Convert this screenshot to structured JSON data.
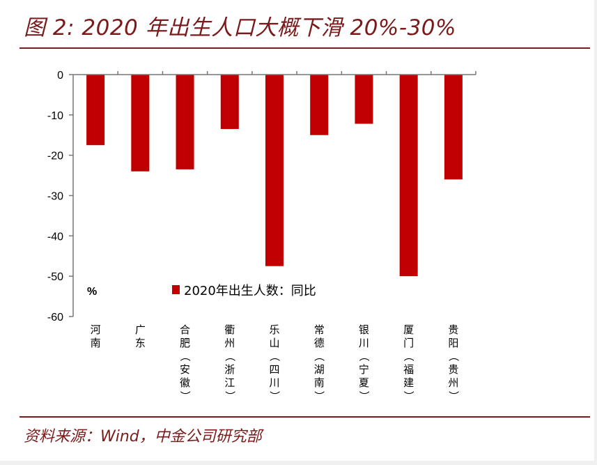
{
  "figure": {
    "title": "图 2: 2020 年出生人口大概下滑 20%-30%",
    "source": "资料来源：Wind，中金公司研究部"
  },
  "chart_data": {
    "type": "bar",
    "title": "",
    "xlabel": "",
    "ylabel": "",
    "unit": "%",
    "categories": [
      "河南",
      "广东",
      "合肥（安徽）",
      "衢州（浙江）",
      "乐山（四川）",
      "常德（湖南）",
      "银川（宁夏）",
      "厦门（福建）",
      "贵阳（贵州）"
    ],
    "series": [
      {
        "name": "2020年出生人数：同比",
        "color": "#c00000",
        "values": [
          -17.5,
          -24.0,
          -23.5,
          -13.5,
          -47.5,
          -15.0,
          -12.2,
          -50.0,
          -26.0
        ]
      }
    ],
    "ylim": [
      -60,
      0
    ],
    "yticks": [
      0,
      -10,
      -20,
      -30,
      -40,
      -50,
      -60
    ],
    "grid": false,
    "legend_position": "inside-bottom-center"
  }
}
